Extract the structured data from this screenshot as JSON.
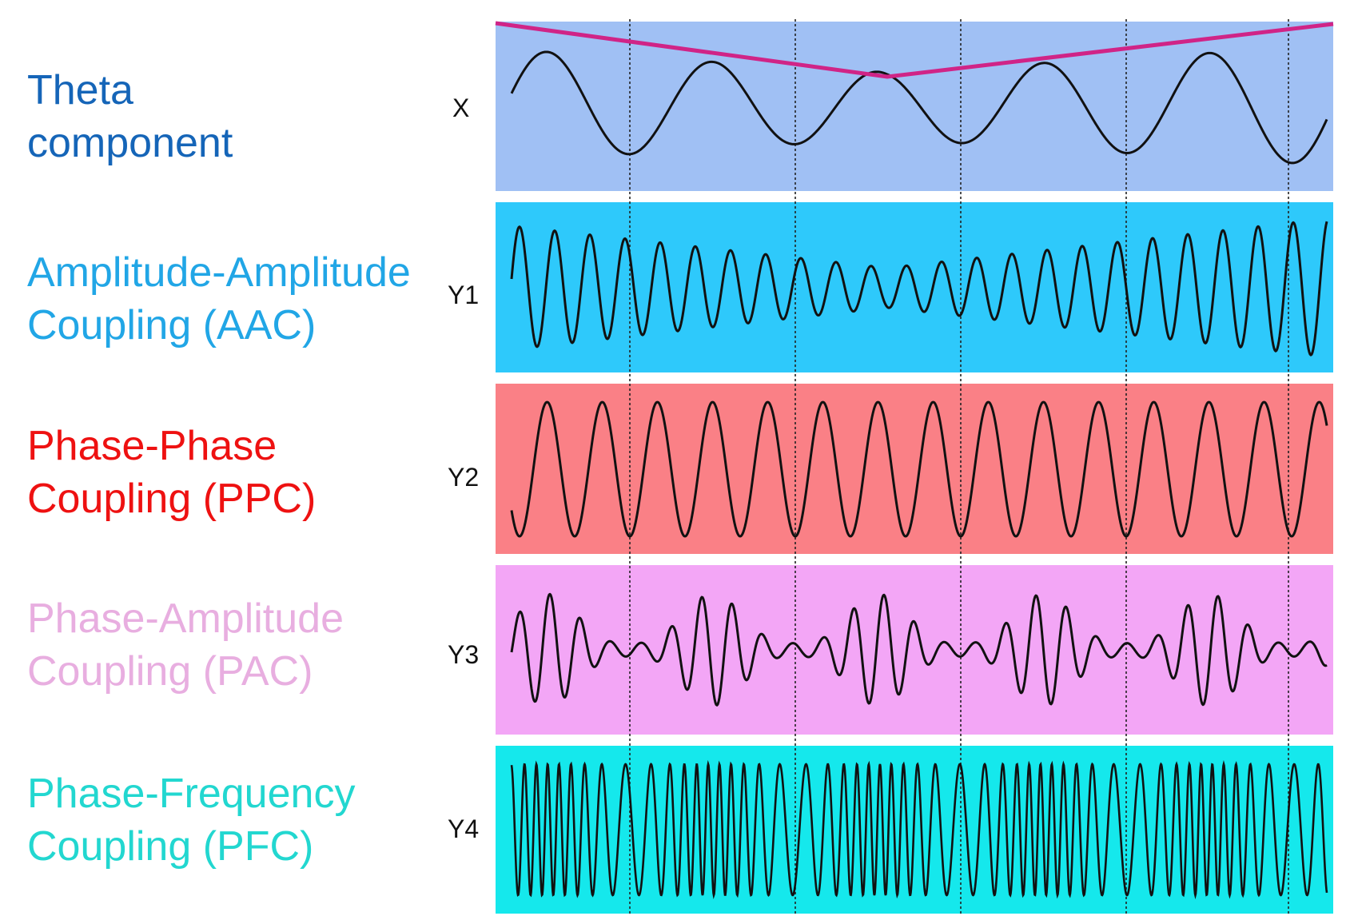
{
  "labels": [
    {
      "id": "theta",
      "line1": "Theta",
      "line2": "component",
      "color": "#1565b8"
    },
    {
      "id": "aac",
      "line1": "Amplitude-Amplitude",
      "line2": "Coupling (AAC)",
      "color": "#21a6e6"
    },
    {
      "id": "ppc",
      "line1": "Phase-Phase",
      "line2": "Coupling (PPC)",
      "color": "#ee1111"
    },
    {
      "id": "pac",
      "line1": "Phase-Amplitude",
      "line2": "Coupling (PAC)",
      "color": "#e8aee0"
    },
    {
      "id": "pfc",
      "line1": "Phase-Frequency",
      "line2": "Coupling (PFC)",
      "color": "#22d7d0"
    }
  ],
  "traces": [
    {
      "id": "x",
      "name": "X",
      "band_color": "#a0c0f4"
    },
    {
      "id": "y1",
      "name": "Y1",
      "band_color": "#2ec9fb"
    },
    {
      "id": "y2",
      "name": "Y2",
      "band_color": "#fa8086"
    },
    {
      "id": "y3",
      "name": "Y3",
      "band_color": "#f3a6f6"
    },
    {
      "id": "y4",
      "name": "Y4",
      "band_color": "#15e8ec"
    }
  ],
  "envelope_color": "#d02487",
  "line_color": "#111111"
}
